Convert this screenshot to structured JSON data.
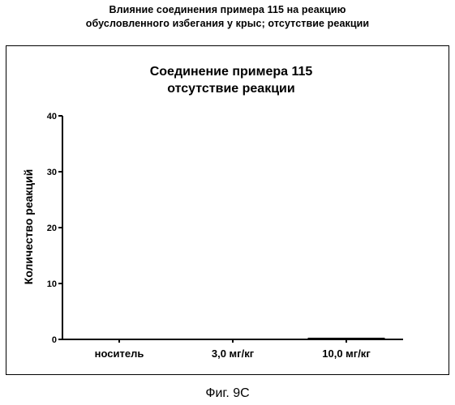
{
  "figure": {
    "heading_line1": "Влияние соединения примера 115 на реакцию",
    "heading_line2": "обусловленного избегания у крыс; отсутствие реакции",
    "caption": "Фиг. 9С"
  },
  "chart_data": {
    "type": "bar",
    "title_line1": "Соединение примера 115",
    "title_line2": "отсутствие реакции",
    "ylabel": "Количество реакций",
    "xlabel": "",
    "categories": [
      "носитель",
      "3,0 мг/кг",
      "10,0 мг/кг"
    ],
    "values": [
      0,
      0,
      0.3
    ],
    "ylim": [
      0,
      40
    ],
    "yticks": [
      0,
      10,
      20,
      30,
      40
    ],
    "grid": false,
    "legend": "none",
    "colors": {
      "axis": "#000000",
      "bar": "#000000",
      "background": "#ffffff"
    }
  }
}
